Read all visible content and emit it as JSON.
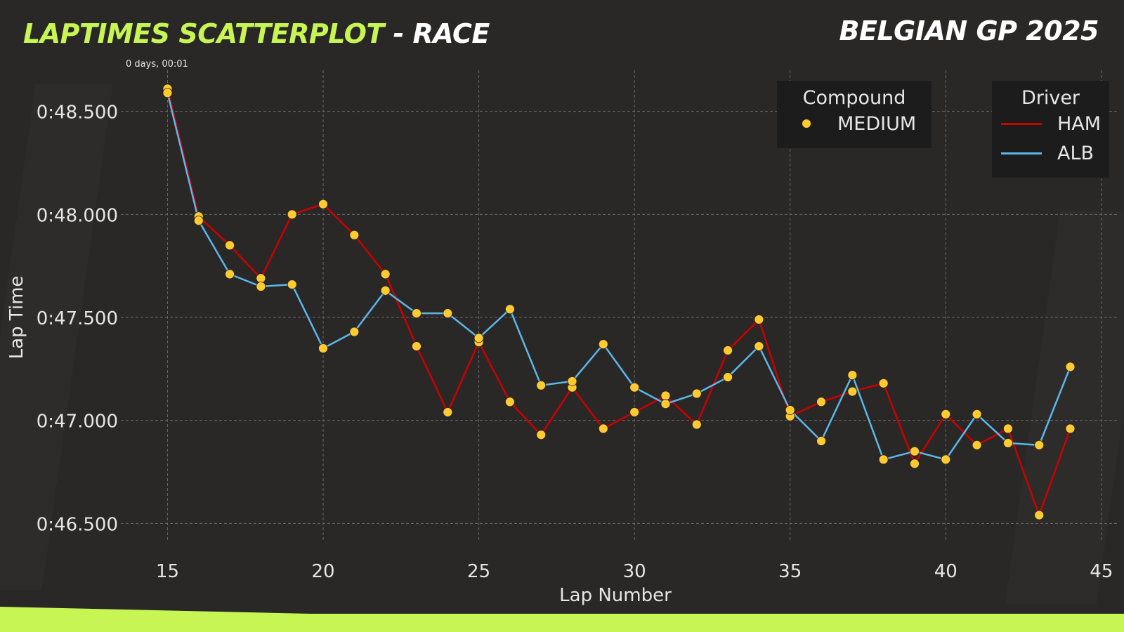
{
  "header": {
    "title_main": "LAPTIMES SCATTERPLOT",
    "title_sep": " - RACE",
    "event": "BELGIAN GP 2025",
    "timestamp": "0 days, 00:01"
  },
  "colors": {
    "accent": "#c7f553",
    "ham": "#cc0000",
    "alb": "#5bb8ea",
    "medium": "#ffcb2e",
    "background": "#2a2727"
  },
  "legend_compound": {
    "title": "Compound",
    "items": [
      {
        "label": "MEDIUM",
        "color": "#ffcb2e"
      }
    ]
  },
  "legend_driver": {
    "title": "Driver",
    "items": [
      {
        "label": "HAM",
        "color": "#cc0000"
      },
      {
        "label": "ALB",
        "color": "#5bb8ea"
      }
    ]
  },
  "chart_data": {
    "type": "scatter",
    "xlabel": "Lap Number",
    "ylabel": "Lap Time",
    "xlim": [
      13.5,
      45.5
    ],
    "ylim": [
      46.3,
      48.7
    ],
    "xticks": [
      15,
      20,
      25,
      30,
      35,
      40,
      45
    ],
    "yticks": [
      46.5,
      47.0,
      47.5,
      48.0,
      48.5
    ],
    "ytick_labels": [
      "0:46.500",
      "0:47.000",
      "0:47.500",
      "0:48.000",
      "0:48.500"
    ],
    "grid": true,
    "series": [
      {
        "name": "HAM",
        "compound": "MEDIUM",
        "x": [
          15,
          16,
          17,
          18,
          19,
          20,
          21,
          22,
          23,
          24,
          25,
          26,
          27,
          28,
          29,
          30,
          31,
          32,
          33,
          34,
          35,
          36,
          37,
          38,
          39,
          40,
          41,
          42,
          43,
          44
        ],
        "y": [
          48.61,
          47.99,
          47.85,
          47.69,
          48.0,
          48.05,
          47.9,
          47.71,
          47.36,
          47.04,
          47.38,
          47.09,
          46.93,
          47.16,
          46.96,
          47.04,
          47.12,
          46.98,
          47.34,
          47.49,
          47.02,
          47.09,
          47.14,
          47.18,
          46.79,
          47.03,
          46.88,
          46.96,
          46.54,
          46.96
        ]
      },
      {
        "name": "ALB",
        "compound": "MEDIUM",
        "x": [
          15,
          16,
          17,
          18,
          19,
          20,
          21,
          22,
          23,
          24,
          25,
          26,
          27,
          28,
          29,
          30,
          31,
          32,
          33,
          34,
          35,
          36,
          37,
          38,
          39,
          40,
          41,
          42,
          43,
          44
        ],
        "y": [
          48.59,
          47.97,
          47.71,
          47.65,
          47.66,
          47.35,
          47.43,
          47.63,
          47.52,
          47.52,
          47.4,
          47.54,
          47.17,
          47.19,
          47.37,
          47.16,
          47.08,
          47.13,
          47.21,
          47.36,
          47.05,
          46.9,
          47.22,
          46.81,
          46.85,
          46.81,
          47.03,
          46.89,
          46.88,
          47.26
        ]
      }
    ]
  }
}
